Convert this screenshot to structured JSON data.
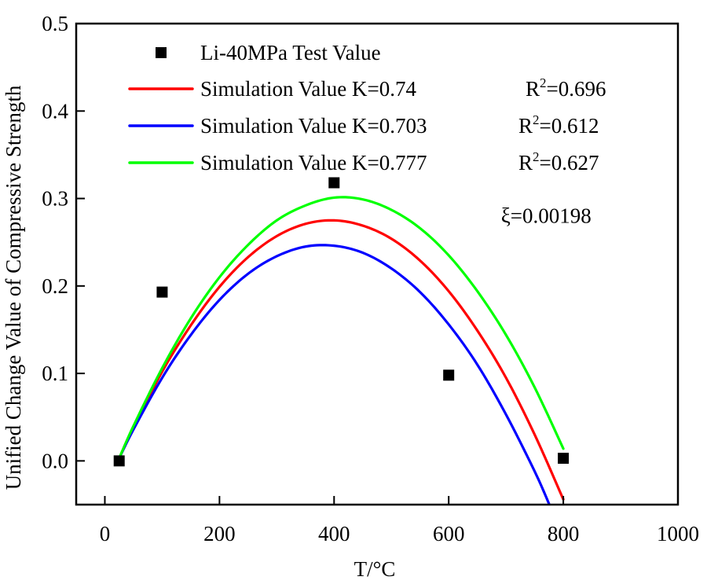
{
  "chart_data": {
    "type": "scatter",
    "title": "",
    "xlabel": "T/°C",
    "ylabel": "Unified Change Value of Compressive Strength",
    "xlim": [
      -50,
      1000
    ],
    "ylim": [
      -0.05,
      0.5
    ],
    "xticks": [
      0,
      200,
      400,
      600,
      800,
      1000
    ],
    "xtick_labels": [
      "0",
      "200",
      "400",
      "600",
      "800",
      "1000"
    ],
    "yticks": [
      0.0,
      0.1,
      0.2,
      0.3,
      0.4,
      0.5
    ],
    "ytick_labels": [
      "0.0",
      "0.1",
      "0.2",
      "0.3",
      "0.4",
      "0.5"
    ],
    "grid": false,
    "legend_position": "top-left",
    "scatter_series": {
      "name": "Li-40MPa Test Value",
      "color": "#000000",
      "marker": "square",
      "x": [
        25,
        100,
        400,
        600,
        800
      ],
      "y": [
        0.0,
        0.193,
        0.318,
        0.098,
        0.003
      ]
    },
    "series": [
      {
        "name": "Simulation Value K=0.74",
        "r2_label": "R",
        "r2_sup": "2",
        "r2_value": "=0.696",
        "color": "#ff0000",
        "x": [
          25,
          50,
          100,
          150,
          200,
          250,
          300,
          350,
          400,
          450,
          500,
          550,
          600,
          650,
          700,
          750,
          800
        ],
        "y": [
          0.003,
          0.038,
          0.102,
          0.155,
          0.199,
          0.233,
          0.257,
          0.271,
          0.275,
          0.269,
          0.254,
          0.229,
          0.194,
          0.149,
          0.095,
          0.03,
          -0.044
        ]
      },
      {
        "name": "Simulation Value K=0.703",
        "r2_label": "R",
        "r2_sup": "2",
        "r2_value": "=0.612",
        "color": "#0000ff",
        "x": [
          25,
          50,
          100,
          150,
          200,
          250,
          300,
          350,
          400,
          450,
          500,
          550,
          600,
          650,
          700,
          750,
          775
        ],
        "y": [
          0.003,
          0.036,
          0.095,
          0.144,
          0.184,
          0.214,
          0.234,
          0.245,
          0.246,
          0.238,
          0.22,
          0.193,
          0.156,
          0.11,
          0.053,
          -0.012,
          -0.049
        ]
      },
      {
        "name": "Simulation Value K=0.777",
        "r2_label": "R",
        "r2_sup": "2",
        "r2_value": "=0.627",
        "color": "#00ff00",
        "x": [
          25,
          50,
          100,
          150,
          200,
          250,
          300,
          350,
          400,
          450,
          500,
          550,
          600,
          650,
          700,
          750,
          800
        ],
        "y": [
          0.003,
          0.04,
          0.106,
          0.163,
          0.21,
          0.247,
          0.275,
          0.292,
          0.301,
          0.299,
          0.287,
          0.266,
          0.235,
          0.194,
          0.144,
          0.084,
          0.014
        ]
      }
    ],
    "annotations": [
      {
        "text": "ξ=0.00198",
        "x": 770,
        "y": 0.265
      }
    ]
  }
}
